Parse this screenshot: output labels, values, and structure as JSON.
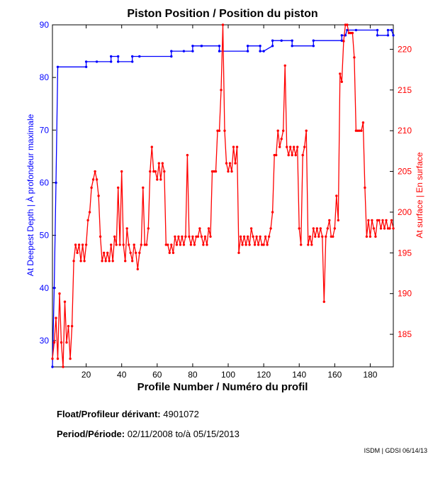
{
  "chart_data": {
    "type": "line",
    "title": "Piston Position / Position du piston",
    "xlabel": "Profile Number / Numéro du profil",
    "ylabel_left": "At Deepest Depth | À profondeur maximale",
    "ylabel_right": "At surface | En surface",
    "xlim": [
      1,
      193
    ],
    "ylim_left": [
      25,
      90
    ],
    "ylim_right": [
      181,
      223
    ],
    "x_ticks": [
      20,
      40,
      60,
      80,
      100,
      120,
      140,
      160,
      180
    ],
    "y_ticks_left": [
      30,
      40,
      50,
      60,
      70,
      80,
      90
    ],
    "y_ticks_right": [
      185,
      190,
      195,
      200,
      205,
      210,
      215,
      220
    ],
    "series": [
      {
        "name": "At Deepest Depth",
        "axis": "left",
        "color": "#0000ff",
        "points": [
          [
            1,
            25
          ],
          [
            2,
            40
          ],
          [
            3,
            60
          ],
          [
            4,
            82
          ],
          [
            20,
            82
          ],
          [
            20,
            83
          ],
          [
            26,
            83
          ],
          [
            34,
            83
          ],
          [
            34,
            84
          ],
          [
            38,
            84
          ],
          [
            38,
            83
          ],
          [
            46,
            83
          ],
          [
            46,
            84
          ],
          [
            50,
            84
          ],
          [
            68,
            84
          ],
          [
            68,
            85
          ],
          [
            75,
            85
          ],
          [
            80,
            85
          ],
          [
            80,
            86
          ],
          [
            85,
            86
          ],
          [
            85,
            86
          ],
          [
            95,
            86
          ],
          [
            95,
            85
          ],
          [
            111,
            85
          ],
          [
            111,
            86
          ],
          [
            118,
            86
          ],
          [
            118,
            85
          ],
          [
            120,
            85
          ],
          [
            125,
            86
          ],
          [
            125,
            87
          ],
          [
            130,
            87
          ],
          [
            136,
            87
          ],
          [
            136,
            86
          ],
          [
            148,
            86
          ],
          [
            148,
            87
          ],
          [
            164,
            87
          ],
          [
            164,
            88
          ],
          [
            166,
            88
          ],
          [
            167,
            89
          ],
          [
            172,
            89
          ],
          [
            184,
            89
          ],
          [
            184,
            88
          ],
          [
            190,
            88
          ],
          [
            190,
            89
          ],
          [
            192,
            89
          ],
          [
            193,
            88
          ]
        ]
      },
      {
        "name": "At surface",
        "axis": "right",
        "color": "#ff0000",
        "points": [
          [
            1,
            182
          ],
          [
            2,
            184
          ],
          [
            3,
            187
          ],
          [
            4,
            182
          ],
          [
            5,
            190
          ],
          [
            6,
            184
          ],
          [
            7,
            181
          ],
          [
            8,
            189
          ],
          [
            9,
            184
          ],
          [
            10,
            186
          ],
          [
            11,
            182
          ],
          [
            12,
            186
          ],
          [
            13,
            194
          ],
          [
            14,
            196
          ],
          [
            15,
            195
          ],
          [
            16,
            196
          ],
          [
            17,
            194
          ],
          [
            18,
            196
          ],
          [
            19,
            194
          ],
          [
            20,
            196
          ],
          [
            21,
            199
          ],
          [
            22,
            200
          ],
          [
            23,
            203
          ],
          [
            24,
            204
          ],
          [
            25,
            205
          ],
          [
            26,
            204
          ],
          [
            27,
            202
          ],
          [
            28,
            197
          ],
          [
            29,
            194
          ],
          [
            30,
            195
          ],
          [
            31,
            194
          ],
          [
            32,
            195
          ],
          [
            33,
            194
          ],
          [
            34,
            196
          ],
          [
            35,
            194
          ],
          [
            36,
            197
          ],
          [
            37,
            196
          ],
          [
            38,
            203
          ],
          [
            39,
            196
          ],
          [
            40,
            205
          ],
          [
            41,
            196
          ],
          [
            42,
            194
          ],
          [
            43,
            198
          ],
          [
            44,
            196
          ],
          [
            45,
            195
          ],
          [
            46,
            194
          ],
          [
            47,
            196
          ],
          [
            48,
            195
          ],
          [
            49,
            193
          ],
          [
            50,
            195
          ],
          [
            51,
            196
          ],
          [
            52,
            203
          ],
          [
            53,
            196
          ],
          [
            54,
            196
          ],
          [
            55,
            198
          ],
          [
            56,
            205
          ],
          [
            57,
            208
          ],
          [
            58,
            205
          ],
          [
            59,
            205
          ],
          [
            60,
            204
          ],
          [
            61,
            206
          ],
          [
            62,
            204
          ],
          [
            63,
            206
          ],
          [
            64,
            205
          ],
          [
            65,
            196
          ],
          [
            66,
            196
          ],
          [
            67,
            195
          ],
          [
            68,
            196
          ],
          [
            69,
            195
          ],
          [
            70,
            197
          ],
          [
            71,
            196
          ],
          [
            72,
            197
          ],
          [
            73,
            196
          ],
          [
            74,
            197
          ],
          [
            75,
            196
          ],
          [
            76,
            197
          ],
          [
            77,
            207
          ],
          [
            78,
            197
          ],
          [
            79,
            196
          ],
          [
            80,
            197
          ],
          [
            81,
            196
          ],
          [
            82,
            197
          ],
          [
            83,
            197
          ],
          [
            84,
            198
          ],
          [
            85,
            197
          ],
          [
            86,
            196
          ],
          [
            87,
            197
          ],
          [
            88,
            196
          ],
          [
            89,
            198
          ],
          [
            90,
            197
          ],
          [
            91,
            205
          ],
          [
            92,
            205
          ],
          [
            93,
            205
          ],
          [
            94,
            210
          ],
          [
            95,
            210
          ],
          [
            96,
            215
          ],
          [
            97,
            223
          ],
          [
            98,
            210
          ],
          [
            99,
            206
          ],
          [
            100,
            205
          ],
          [
            101,
            206
          ],
          [
            102,
            205
          ],
          [
            103,
            208
          ],
          [
            104,
            206
          ],
          [
            105,
            208
          ],
          [
            106,
            195
          ],
          [
            107,
            197
          ],
          [
            108,
            196
          ],
          [
            109,
            197
          ],
          [
            110,
            196
          ],
          [
            111,
            197
          ],
          [
            112,
            196
          ],
          [
            113,
            198
          ],
          [
            114,
            197
          ],
          [
            115,
            196
          ],
          [
            116,
            197
          ],
          [
            117,
            196
          ],
          [
            118,
            197
          ],
          [
            119,
            196
          ],
          [
            120,
            196
          ],
          [
            121,
            197
          ],
          [
            122,
            196
          ],
          [
            123,
            197
          ],
          [
            124,
            198
          ],
          [
            125,
            200
          ],
          [
            126,
            207
          ],
          [
            127,
            207
          ],
          [
            128,
            210
          ],
          [
            129,
            208
          ],
          [
            130,
            209
          ],
          [
            131,
            210
          ],
          [
            132,
            218
          ],
          [
            133,
            208
          ],
          [
            134,
            207
          ],
          [
            135,
            208
          ],
          [
            136,
            207
          ],
          [
            137,
            208
          ],
          [
            138,
            207
          ],
          [
            139,
            208
          ],
          [
            140,
            198
          ],
          [
            141,
            196
          ],
          [
            142,
            207
          ],
          [
            143,
            208
          ],
          [
            144,
            210
          ],
          [
            145,
            196
          ],
          [
            146,
            197
          ],
          [
            147,
            196
          ],
          [
            148,
            198
          ],
          [
            149,
            197
          ],
          [
            150,
            198
          ],
          [
            151,
            197
          ],
          [
            152,
            198
          ],
          [
            153,
            197
          ],
          [
            154,
            189
          ],
          [
            155,
            197
          ],
          [
            156,
            198
          ],
          [
            157,
            199
          ],
          [
            158,
            197
          ],
          [
            159,
            197
          ],
          [
            160,
            198
          ],
          [
            161,
            202
          ],
          [
            162,
            199
          ],
          [
            163,
            217
          ],
          [
            164,
            216
          ],
          [
            165,
            221
          ],
          [
            166,
            223
          ],
          [
            167,
            223
          ],
          [
            168,
            222
          ],
          [
            169,
            222
          ],
          [
            170,
            222
          ],
          [
            171,
            219
          ],
          [
            172,
            210
          ],
          [
            173,
            210
          ],
          [
            174,
            210
          ],
          [
            175,
            210
          ],
          [
            176,
            211
          ],
          [
            177,
            203
          ],
          [
            178,
            197
          ],
          [
            179,
            199
          ],
          [
            180,
            197
          ],
          [
            181,
            199
          ],
          [
            182,
            198
          ],
          [
            183,
            197
          ],
          [
            184,
            199
          ],
          [
            185,
            199
          ],
          [
            186,
            198
          ],
          [
            187,
            199
          ],
          [
            188,
            198
          ],
          [
            189,
            199
          ],
          [
            190,
            198
          ],
          [
            191,
            198
          ],
          [
            192,
            199
          ],
          [
            193,
            198
          ]
        ]
      }
    ]
  },
  "info": {
    "float_label": "Float/Profileur dérivant:",
    "float_id": "4901072",
    "period_label": "Period/Période:",
    "period_start": "02/11/2008",
    "period_sep": "to/à",
    "period_end": "05/15/2013"
  },
  "credit": "ISDM | GDSI 06/14/13"
}
